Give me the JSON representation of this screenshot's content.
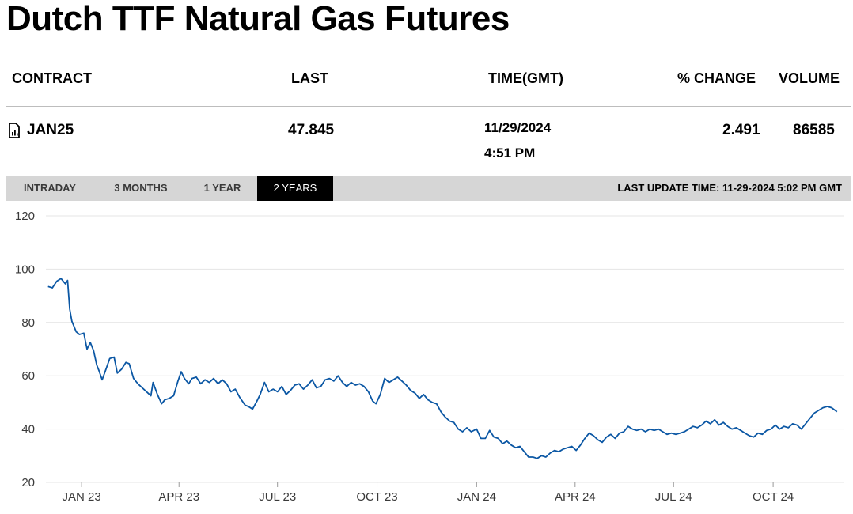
{
  "page": {
    "title": "Dutch TTF Natural Gas Futures"
  },
  "table": {
    "headers": {
      "contract": "CONTRACT",
      "last": "LAST",
      "time": "TIME(GMT)",
      "change": "% CHANGE",
      "volume": "VOLUME"
    },
    "row": {
      "contract": "JAN25",
      "contract_icon": "document-chart-icon",
      "last": "47.845",
      "date": "11/29/2024",
      "time": "4:51 PM",
      "change": "2.491",
      "volume": "86585"
    }
  },
  "tabs": {
    "intraday": "INTRADAY",
    "three_months": "3 MONTHS",
    "one_year": "1 YEAR",
    "two_years": "2 YEARS",
    "selected": "2 YEARS"
  },
  "last_update": "LAST UPDATE TIME: 11-29-2024 5:02 PM GMT",
  "colors": {
    "line": "#0b57a4",
    "active_tab_bg": "#000000",
    "tabbar_bg": "#d6d6d6",
    "grid": "#e4e4e4"
  },
  "chart_data": {
    "type": "line",
    "title": "",
    "xlabel": "",
    "ylabel": "",
    "ylim": [
      20,
      120
    ],
    "yticks": [
      "20",
      "40",
      "60",
      "80",
      "100",
      "120"
    ],
    "xticks": [
      {
        "label": "JAN 23",
        "date": "2023-01-01"
      },
      {
        "label": "APR 23",
        "date": "2023-04-01"
      },
      {
        "label": "JUL 23",
        "date": "2023-07-01"
      },
      {
        "label": "OCT 23",
        "date": "2023-10-01"
      },
      {
        "label": "JAN 24",
        "date": "2024-01-01"
      },
      {
        "label": "APR 24",
        "date": "2024-04-01"
      },
      {
        "label": "JUL 24",
        "date": "2024-07-01"
      },
      {
        "label": "OCT 24",
        "date": "2024-10-01"
      }
    ],
    "grid": true,
    "legend": "none",
    "series": [
      {
        "values": [
          [
            "2022-12-01",
            93.5
          ],
          [
            "2022-12-05",
            93.0
          ],
          [
            "2022-12-09",
            95.5
          ],
          [
            "2022-12-13",
            96.5
          ],
          [
            "2022-12-17",
            94.5
          ],
          [
            "2022-12-19",
            95.8
          ],
          [
            "2022-12-21",
            85.0
          ],
          [
            "2022-12-23",
            80.5
          ],
          [
            "2022-12-27",
            76.5
          ],
          [
            "2022-12-30",
            75.5
          ],
          [
            "2023-01-03",
            76.0
          ],
          [
            "2023-01-06",
            70.0
          ],
          [
            "2023-01-09",
            72.5
          ],
          [
            "2023-01-12",
            69.5
          ],
          [
            "2023-01-15",
            64.0
          ],
          [
            "2023-01-17",
            62.0
          ],
          [
            "2023-01-20",
            58.5
          ],
          [
            "2023-01-24",
            63.0
          ],
          [
            "2023-01-27",
            66.5
          ],
          [
            "2023-01-31",
            67.0
          ],
          [
            "2023-02-03",
            61.0
          ],
          [
            "2023-02-07",
            62.5
          ],
          [
            "2023-02-11",
            65.0
          ],
          [
            "2023-02-14",
            64.5
          ],
          [
            "2023-02-18",
            59.0
          ],
          [
            "2023-02-22",
            57.0
          ],
          [
            "2023-02-26",
            55.5
          ],
          [
            "2023-03-02",
            54.0
          ],
          [
            "2023-03-06",
            52.5
          ],
          [
            "2023-03-08",
            57.5
          ],
          [
            "2023-03-12",
            53.0
          ],
          [
            "2023-03-16",
            49.5
          ],
          [
            "2023-03-19",
            51.0
          ],
          [
            "2023-03-23",
            51.5
          ],
          [
            "2023-03-27",
            52.5
          ],
          [
            "2023-03-31",
            58.0
          ],
          [
            "2023-04-03",
            61.5
          ],
          [
            "2023-04-06",
            59.0
          ],
          [
            "2023-04-10",
            57.0
          ],
          [
            "2023-04-13",
            59.0
          ],
          [
            "2023-04-17",
            59.5
          ],
          [
            "2023-04-21",
            57.0
          ],
          [
            "2023-04-25",
            58.5
          ],
          [
            "2023-04-29",
            57.5
          ],
          [
            "2023-05-03",
            59.0
          ],
          [
            "2023-05-07",
            57.0
          ],
          [
            "2023-05-11",
            58.5
          ],
          [
            "2023-05-15",
            57.0
          ],
          [
            "2023-05-19",
            54.0
          ],
          [
            "2023-05-23",
            55.0
          ],
          [
            "2023-05-27",
            52.0
          ],
          [
            "2023-06-01",
            49.0
          ],
          [
            "2023-06-04",
            48.5
          ],
          [
            "2023-06-08",
            47.5
          ],
          [
            "2023-06-12",
            50.5
          ],
          [
            "2023-06-15",
            53.0
          ],
          [
            "2023-06-19",
            57.5
          ],
          [
            "2023-06-23",
            54.0
          ],
          [
            "2023-06-27",
            55.0
          ],
          [
            "2023-07-01",
            54.0
          ],
          [
            "2023-07-05",
            56.0
          ],
          [
            "2023-07-09",
            53.0
          ],
          [
            "2023-07-13",
            54.5
          ],
          [
            "2023-07-17",
            56.5
          ],
          [
            "2023-07-21",
            57.0
          ],
          [
            "2023-07-25",
            55.0
          ],
          [
            "2023-07-29",
            56.5
          ],
          [
            "2023-08-02",
            58.5
          ],
          [
            "2023-08-06",
            55.5
          ],
          [
            "2023-08-10",
            56.0
          ],
          [
            "2023-08-14",
            58.5
          ],
          [
            "2023-08-18",
            59.0
          ],
          [
            "2023-08-22",
            58.0
          ],
          [
            "2023-08-26",
            60.0
          ],
          [
            "2023-08-30",
            57.5
          ],
          [
            "2023-09-03",
            56.0
          ],
          [
            "2023-09-07",
            57.5
          ],
          [
            "2023-09-11",
            56.5
          ],
          [
            "2023-09-15",
            57.0
          ],
          [
            "2023-09-19",
            56.0
          ],
          [
            "2023-09-23",
            54.0
          ],
          [
            "2023-09-27",
            50.5
          ],
          [
            "2023-09-30",
            49.5
          ],
          [
            "2023-10-04",
            53.0
          ],
          [
            "2023-10-08",
            59.0
          ],
          [
            "2023-10-12",
            57.5
          ],
          [
            "2023-10-16",
            58.5
          ],
          [
            "2023-10-20",
            59.5
          ],
          [
            "2023-10-24",
            58.0
          ],
          [
            "2023-10-28",
            56.5
          ],
          [
            "2023-11-01",
            54.5
          ],
          [
            "2023-11-05",
            53.5
          ],
          [
            "2023-11-09",
            51.5
          ],
          [
            "2023-11-13",
            53.0
          ],
          [
            "2023-11-17",
            51.0
          ],
          [
            "2023-11-21",
            50.0
          ],
          [
            "2023-11-25",
            49.5
          ],
          [
            "2023-11-29",
            46.5
          ],
          [
            "2023-12-03",
            44.5
          ],
          [
            "2023-12-07",
            43.0
          ],
          [
            "2023-12-11",
            42.5
          ],
          [
            "2023-12-15",
            40.0
          ],
          [
            "2023-12-19",
            39.0
          ],
          [
            "2023-12-23",
            40.5
          ],
          [
            "2023-12-27",
            39.0
          ],
          [
            "2024-01-01",
            40.0
          ],
          [
            "2024-01-05",
            36.5
          ],
          [
            "2024-01-09",
            36.5
          ],
          [
            "2024-01-13",
            39.5
          ],
          [
            "2024-01-17",
            37.0
          ],
          [
            "2024-01-21",
            36.5
          ],
          [
            "2024-01-25",
            34.5
          ],
          [
            "2024-01-29",
            35.5
          ],
          [
            "2024-02-02",
            34.0
          ],
          [
            "2024-02-06",
            33.0
          ],
          [
            "2024-02-10",
            33.5
          ],
          [
            "2024-02-14",
            31.5
          ],
          [
            "2024-02-18",
            29.5
          ],
          [
            "2024-02-22",
            29.5
          ],
          [
            "2024-02-26",
            29.0
          ],
          [
            "2024-03-01",
            30.0
          ],
          [
            "2024-03-05",
            29.5
          ],
          [
            "2024-03-09",
            31.0
          ],
          [
            "2024-03-13",
            32.0
          ],
          [
            "2024-03-17",
            31.5
          ],
          [
            "2024-03-21",
            32.5
          ],
          [
            "2024-03-25",
            33.0
          ],
          [
            "2024-03-29",
            33.5
          ],
          [
            "2024-04-02",
            32.0
          ],
          [
            "2024-04-06",
            34.0
          ],
          [
            "2024-04-10",
            36.5
          ],
          [
            "2024-04-14",
            38.5
          ],
          [
            "2024-04-18",
            37.5
          ],
          [
            "2024-04-22",
            36.0
          ],
          [
            "2024-04-26",
            35.0
          ],
          [
            "2024-04-30",
            37.0
          ],
          [
            "2024-05-04",
            38.0
          ],
          [
            "2024-05-08",
            36.5
          ],
          [
            "2024-05-12",
            38.5
          ],
          [
            "2024-05-16",
            39.0
          ],
          [
            "2024-05-20",
            41.0
          ],
          [
            "2024-05-24",
            40.0
          ],
          [
            "2024-05-28",
            39.5
          ],
          [
            "2024-06-01",
            40.0
          ],
          [
            "2024-06-05",
            39.0
          ],
          [
            "2024-06-09",
            40.0
          ],
          [
            "2024-06-13",
            39.5
          ],
          [
            "2024-06-17",
            40.0
          ],
          [
            "2024-06-21",
            39.0
          ],
          [
            "2024-06-25",
            38.0
          ],
          [
            "2024-06-29",
            38.5
          ],
          [
            "2024-07-03",
            38.0
          ],
          [
            "2024-07-07",
            38.5
          ],
          [
            "2024-07-11",
            39.0
          ],
          [
            "2024-07-15",
            40.0
          ],
          [
            "2024-07-19",
            41.0
          ],
          [
            "2024-07-23",
            40.5
          ],
          [
            "2024-07-27",
            41.5
          ],
          [
            "2024-07-31",
            43.0
          ],
          [
            "2024-08-04",
            42.0
          ],
          [
            "2024-08-08",
            43.5
          ],
          [
            "2024-08-12",
            41.5
          ],
          [
            "2024-08-16",
            42.5
          ],
          [
            "2024-08-20",
            41.0
          ],
          [
            "2024-08-24",
            40.0
          ],
          [
            "2024-08-28",
            40.5
          ],
          [
            "2024-09-01",
            39.5
          ],
          [
            "2024-09-05",
            38.5
          ],
          [
            "2024-09-09",
            37.5
          ],
          [
            "2024-09-13",
            37.0
          ],
          [
            "2024-09-17",
            38.5
          ],
          [
            "2024-09-21",
            38.0
          ],
          [
            "2024-09-25",
            39.5
          ],
          [
            "2024-09-29",
            40.0
          ],
          [
            "2024-10-03",
            41.5
          ],
          [
            "2024-10-07",
            40.0
          ],
          [
            "2024-10-11",
            41.0
          ],
          [
            "2024-10-15",
            40.5
          ],
          [
            "2024-10-19",
            42.0
          ],
          [
            "2024-10-23",
            41.5
          ],
          [
            "2024-10-27",
            40.0
          ],
          [
            "2024-10-31",
            42.0
          ],
          [
            "2024-11-04",
            44.0
          ],
          [
            "2024-11-08",
            46.0
          ],
          [
            "2024-11-12",
            47.0
          ],
          [
            "2024-11-16",
            48.0
          ],
          [
            "2024-11-20",
            48.5
          ],
          [
            "2024-11-24",
            48.0
          ],
          [
            "2024-11-29",
            46.5
          ]
        ]
      }
    ]
  }
}
